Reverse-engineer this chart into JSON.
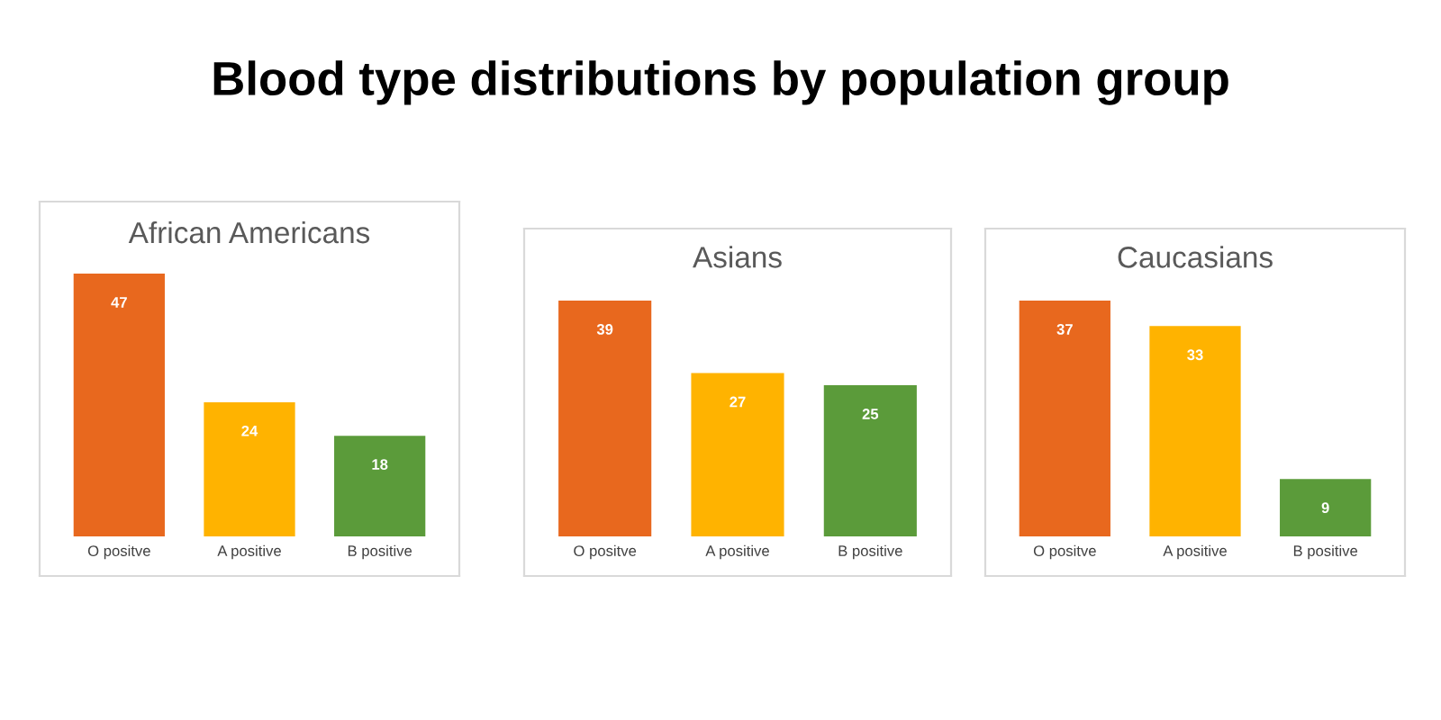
{
  "chart_data": [
    {
      "type": "bar",
      "title": "African Americans",
      "annotations": [
        "Blood type distributions by population group"
      ],
      "categories": [
        "O positve",
        "A positive",
        "B positive"
      ],
      "values": [
        47,
        24,
        18
      ],
      "colors": [
        "#e8681e",
        "#ffb300",
        "#5b9b3a"
      ],
      "data_labels": true,
      "grid": false,
      "tick_labels": "x"
    },
    {
      "type": "bar",
      "title": "Asians",
      "categories": [
        "O positve",
        "A positive",
        "B positive"
      ],
      "values": [
        39,
        27,
        25
      ],
      "colors": [
        "#e8681e",
        "#ffb300",
        "#5b9b3a"
      ],
      "data_labels": true,
      "grid": false,
      "tick_labels": "x"
    },
    {
      "type": "bar",
      "title": "Caucasians",
      "categories": [
        "O positve",
        "A positive",
        "B positive"
      ],
      "values": [
        37,
        33,
        9
      ],
      "colors": [
        "#e8681e",
        "#ffb300",
        "#5b9b3a"
      ],
      "data_labels": true,
      "grid": false,
      "tick_labels": "x"
    }
  ]
}
